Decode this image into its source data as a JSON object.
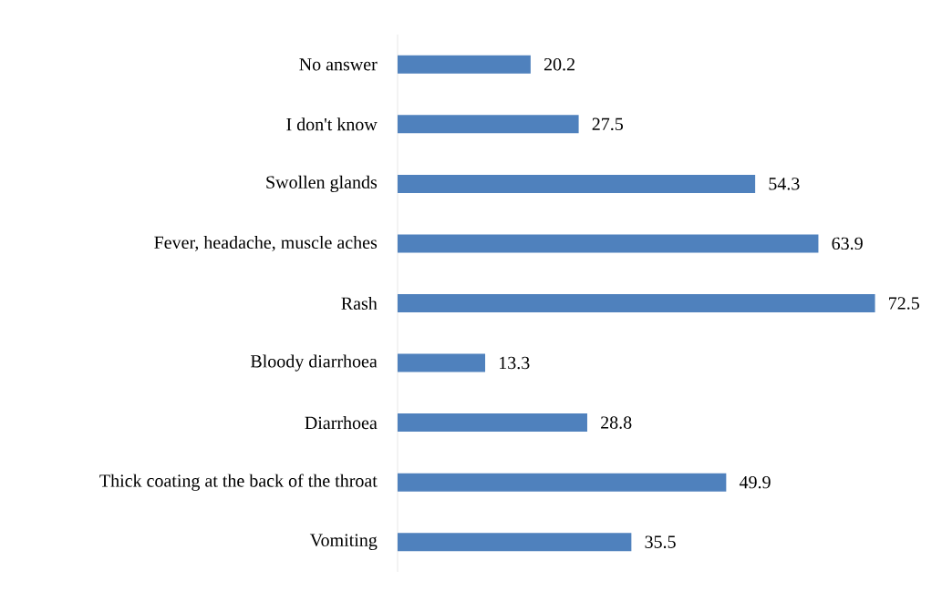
{
  "chart_data": {
    "type": "bar",
    "orientation": "horizontal",
    "categories": [
      "No answer",
      "I don't know",
      "Swollen glands",
      "Fever, headache, muscle aches",
      "Rash",
      "Bloody diarrhoea",
      "Diarrhoea",
      "Thick coating at the back of the throat",
      "Vomiting"
    ],
    "values": [
      20.2,
      27.5,
      54.3,
      63.9,
      72.5,
      13.3,
      28.8,
      49.9,
      35.5
    ],
    "color": "#4f81bd",
    "data_labels": true
  }
}
